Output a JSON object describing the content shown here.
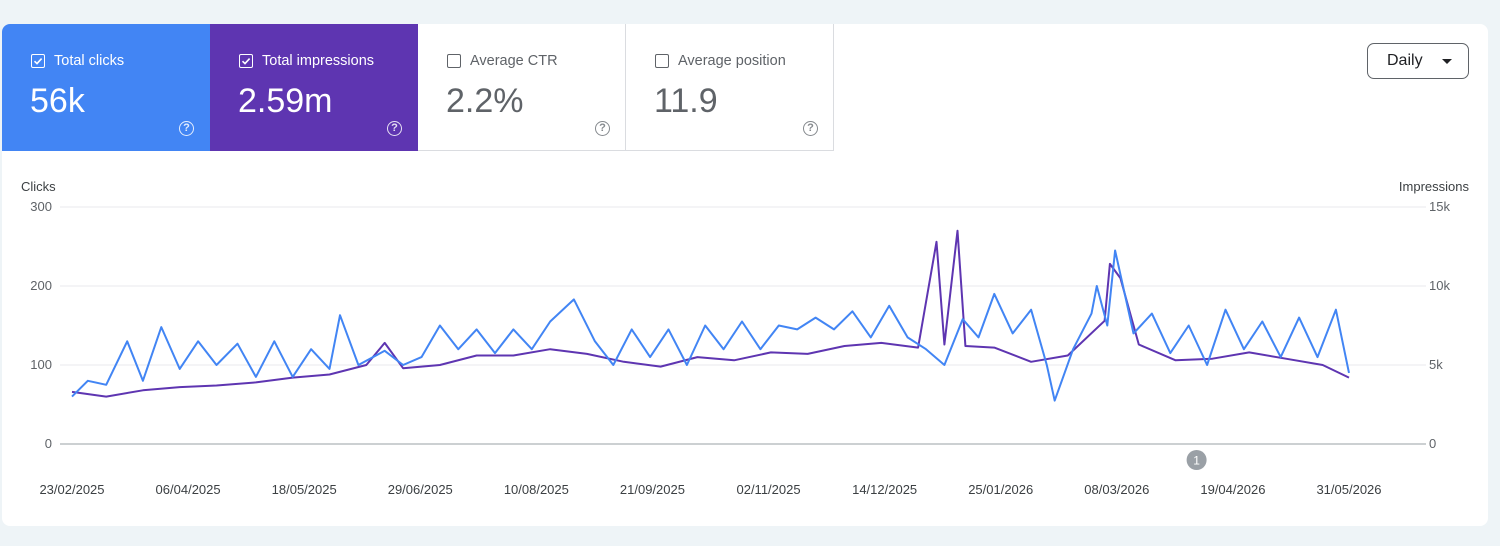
{
  "metrics": [
    {
      "label": "Total clicks",
      "value": "56k",
      "color": "#4285f4",
      "checked": true
    },
    {
      "label": "Total impressions",
      "value": "2.59m",
      "color": "#5e35b1",
      "checked": true
    },
    {
      "label": "Average CTR",
      "value": "2.2%",
      "checked": false
    },
    {
      "label": "Average position",
      "value": "11.9",
      "checked": false
    }
  ],
  "range_select": {
    "label": "Daily"
  },
  "annotation": {
    "label": "1",
    "date": "2026-04-27"
  },
  "chart_data": {
    "type": "line",
    "left_axis_label": "Clicks",
    "right_axis_label": "Impressions",
    "left_ylim": [
      0,
      300
    ],
    "right_ylim": [
      0,
      15000
    ],
    "left_ticks": [
      "0",
      "100",
      "200",
      "300"
    ],
    "right_ticks": [
      "0",
      "5k",
      "10k",
      "15k"
    ],
    "x_ticks": [
      "23/02/2025",
      "06/04/2025",
      "18/05/2025",
      "29/06/2025",
      "10/08/2025",
      "21/09/2025",
      "02/11/2025",
      "14/12/2025",
      "25/01/2026",
      "08/03/2026",
      "19/04/2026",
      "31/05/2026"
    ],
    "x_range": [
      "2025-02-23",
      "2026-06-24"
    ],
    "grid": true,
    "series": [
      {
        "name": "Total clicks",
        "axis": "left",
        "color": "#4285f4",
        "points": [
          [
            "2025-02-23",
            60
          ],
          [
            "2025-03-01",
            80
          ],
          [
            "2025-03-08",
            75
          ],
          [
            "2025-03-16",
            130
          ],
          [
            "2025-03-22",
            80
          ],
          [
            "2025-03-29",
            148
          ],
          [
            "2025-04-05",
            95
          ],
          [
            "2025-04-12",
            130
          ],
          [
            "2025-04-19",
            100
          ],
          [
            "2025-04-27",
            127
          ],
          [
            "2025-05-04",
            85
          ],
          [
            "2025-05-11",
            130
          ],
          [
            "2025-05-18",
            85
          ],
          [
            "2025-05-25",
            120
          ],
          [
            "2025-06-01",
            95
          ],
          [
            "2025-06-05",
            163
          ],
          [
            "2025-06-12",
            100
          ],
          [
            "2025-06-22",
            118
          ],
          [
            "2025-06-29",
            100
          ],
          [
            "2025-07-06",
            110
          ],
          [
            "2025-07-13",
            150
          ],
          [
            "2025-07-20",
            120
          ],
          [
            "2025-07-27",
            145
          ],
          [
            "2025-08-03",
            115
          ],
          [
            "2025-08-10",
            145
          ],
          [
            "2025-08-17",
            120
          ],
          [
            "2025-08-24",
            155
          ],
          [
            "2025-09-02",
            183
          ],
          [
            "2025-09-10",
            130
          ],
          [
            "2025-09-17",
            100
          ],
          [
            "2025-09-24",
            145
          ],
          [
            "2025-10-01",
            110
          ],
          [
            "2025-10-08",
            145
          ],
          [
            "2025-10-15",
            100
          ],
          [
            "2025-10-22",
            150
          ],
          [
            "2025-10-29",
            120
          ],
          [
            "2025-11-05",
            155
          ],
          [
            "2025-11-12",
            120
          ],
          [
            "2025-11-19",
            150
          ],
          [
            "2025-11-26",
            145
          ],
          [
            "2025-12-03",
            160
          ],
          [
            "2025-12-10",
            145
          ],
          [
            "2025-12-17",
            168
          ],
          [
            "2025-12-24",
            135
          ],
          [
            "2025-12-31",
            175
          ],
          [
            "2026-01-07",
            135
          ],
          [
            "2026-01-14",
            120
          ],
          [
            "2026-01-21",
            100
          ],
          [
            "2026-01-28",
            158
          ],
          [
            "2026-02-03",
            135
          ],
          [
            "2026-02-09",
            190
          ],
          [
            "2026-02-16",
            140
          ],
          [
            "2026-02-23",
            170
          ],
          [
            "2026-03-01",
            100
          ],
          [
            "2026-03-04",
            55
          ],
          [
            "2026-03-11",
            120
          ],
          [
            "2026-03-18",
            165
          ],
          [
            "2026-03-20",
            200
          ],
          [
            "2026-03-24",
            150
          ],
          [
            "2026-03-27",
            245
          ],
          [
            "2026-04-03",
            140
          ],
          [
            "2026-04-10",
            165
          ],
          [
            "2026-04-17",
            115
          ],
          [
            "2026-04-24",
            150
          ],
          [
            "2026-05-01",
            100
          ],
          [
            "2026-05-08",
            170
          ],
          [
            "2026-05-15",
            120
          ],
          [
            "2026-05-22",
            155
          ],
          [
            "2026-05-29",
            110
          ],
          [
            "2026-06-05",
            160
          ],
          [
            "2026-06-12",
            110
          ],
          [
            "2026-06-19",
            170
          ],
          [
            "2026-06-24",
            90
          ]
        ]
      },
      {
        "name": "Total impressions",
        "axis": "right",
        "color": "#5e35b1",
        "points": [
          [
            "2025-02-23",
            3300
          ],
          [
            "2025-03-08",
            3000
          ],
          [
            "2025-03-22",
            3400
          ],
          [
            "2025-04-05",
            3600
          ],
          [
            "2025-04-19",
            3700
          ],
          [
            "2025-05-04",
            3900
          ],
          [
            "2025-05-18",
            4200
          ],
          [
            "2025-06-01",
            4400
          ],
          [
            "2025-06-15",
            5000
          ],
          [
            "2025-06-22",
            6400
          ],
          [
            "2025-06-29",
            4800
          ],
          [
            "2025-07-13",
            5000
          ],
          [
            "2025-07-27",
            5600
          ],
          [
            "2025-08-10",
            5600
          ],
          [
            "2025-08-24",
            6000
          ],
          [
            "2025-09-07",
            5700
          ],
          [
            "2025-09-21",
            5200
          ],
          [
            "2025-10-05",
            4900
          ],
          [
            "2025-10-19",
            5500
          ],
          [
            "2025-11-02",
            5300
          ],
          [
            "2025-11-16",
            5800
          ],
          [
            "2025-11-30",
            5700
          ],
          [
            "2025-12-14",
            6200
          ],
          [
            "2025-12-28",
            6400
          ],
          [
            "2026-01-11",
            6100
          ],
          [
            "2026-01-18",
            12800
          ],
          [
            "2026-01-21",
            6300
          ],
          [
            "2026-01-26",
            13500
          ],
          [
            "2026-01-29",
            6200
          ],
          [
            "2026-02-09",
            6100
          ],
          [
            "2026-02-23",
            5200
          ],
          [
            "2026-03-09",
            5600
          ],
          [
            "2026-03-23",
            7800
          ],
          [
            "2026-03-25",
            11400
          ],
          [
            "2026-03-29",
            10500
          ],
          [
            "2026-04-05",
            6300
          ],
          [
            "2026-04-19",
            5300
          ],
          [
            "2026-05-03",
            5400
          ],
          [
            "2026-05-17",
            5800
          ],
          [
            "2026-05-31",
            5400
          ],
          [
            "2026-06-14",
            5000
          ],
          [
            "2026-06-24",
            4200
          ]
        ]
      }
    ]
  }
}
